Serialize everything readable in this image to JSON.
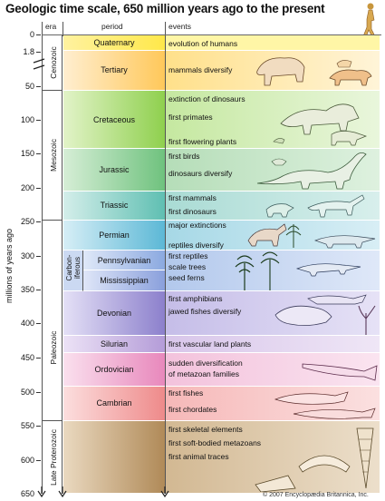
{
  "title": "Geologic time scale, 650 million years ago to the present",
  "headers": {
    "era": "era",
    "period": "period",
    "events": "events"
  },
  "axis_title": "millions of years ago",
  "ticks": [
    "0",
    "1.8",
    "50",
    "100",
    "150",
    "200",
    "250",
    "300",
    "350",
    "400",
    "450",
    "500",
    "550",
    "600",
    "650"
  ],
  "eras": {
    "cenozoic": "Cenozoic",
    "mesozoic": "Mesozoic",
    "paleozoic": "Paleozoic",
    "late_proterozoic": "Late Proterozoic",
    "carboniferous": "Carbon-iferous"
  },
  "periods": {
    "quaternary": "Quaternary",
    "tertiary": "Tertiary",
    "cretaceous": "Cretaceous",
    "jurassic": "Jurassic",
    "triassic": "Triassic",
    "permian": "Permian",
    "pennsylvanian": "Pennsylvanian",
    "mississippian": "Mississippian",
    "devonian": "Devonian",
    "silurian": "Silurian",
    "ordovician": "Ordovician",
    "cambrian": "Cambrian"
  },
  "events": {
    "quaternary": [
      "evolution of humans"
    ],
    "tertiary": [
      "mammals diversify"
    ],
    "cretaceous": [
      "extinction of dinosaurs",
      "first primates",
      "first flowering plants"
    ],
    "jurassic": [
      "first birds",
      "dinosaurs diversify"
    ],
    "triassic": [
      "first mammals",
      "first dinosaurs"
    ],
    "permian": [
      "major extinctions",
      "reptiles diversify"
    ],
    "carboniferous": [
      "first reptiles",
      "scale trees",
      "seed ferns"
    ],
    "devonian": [
      "first amphibians",
      "jawed fishes diversify"
    ],
    "silurian": [
      "first vascular land plants"
    ],
    "ordovician": [
      "sudden diversification",
      "of metazoan families"
    ],
    "cambrian": [
      "first fishes",
      "first chordates"
    ],
    "proterozoic": [
      "first skeletal elements",
      "first soft-bodied metazoans",
      "first animal traces"
    ]
  },
  "copyright": "© 2007 Encyclopædia Britannica, Inc."
}
